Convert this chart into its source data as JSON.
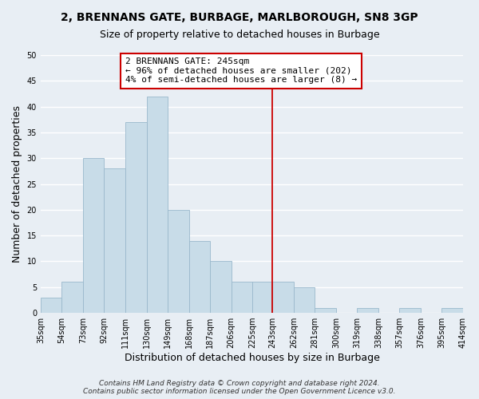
{
  "title": "2, BRENNANS GATE, BURBAGE, MARLBOROUGH, SN8 3GP",
  "subtitle": "Size of property relative to detached houses in Burbage",
  "xlabel": "Distribution of detached houses by size in Burbage",
  "ylabel": "Number of detached properties",
  "bar_color": "#c8dce8",
  "bar_edge_color": "#9ab8cc",
  "bin_edges": [
    35,
    54,
    73,
    92,
    111,
    130,
    149,
    168,
    187,
    206,
    225,
    243,
    262,
    281,
    300,
    319,
    338,
    357,
    376,
    395,
    414
  ],
  "bar_heights": [
    3,
    6,
    30,
    28,
    37,
    42,
    20,
    14,
    10,
    6,
    6,
    6,
    5,
    1,
    0,
    1,
    0,
    1,
    0,
    1
  ],
  "tick_labels": [
    "35sqm",
    "54sqm",
    "73sqm",
    "92sqm",
    "111sqm",
    "130sqm",
    "149sqm",
    "168sqm",
    "187sqm",
    "206sqm",
    "225sqm",
    "243sqm",
    "262sqm",
    "281sqm",
    "300sqm",
    "319sqm",
    "338sqm",
    "357sqm",
    "376sqm",
    "395sqm",
    "414sqm"
  ],
  "ylim": [
    0,
    50
  ],
  "yticks": [
    0,
    5,
    10,
    15,
    20,
    25,
    30,
    35,
    40,
    45,
    50
  ],
  "vline_x": 243,
  "vline_color": "#cc0000",
  "annotation_title": "2 BRENNANS GATE: 245sqm",
  "annotation_line1": "← 96% of detached houses are smaller (202)",
  "annotation_line2": "4% of semi-detached houses are larger (8) →",
  "footer_line1": "Contains HM Land Registry data © Crown copyright and database right 2024.",
  "footer_line2": "Contains public sector information licensed under the Open Government Licence v3.0.",
  "background_color": "#e8eef4",
  "grid_color": "#ffffff",
  "title_fontsize": 10,
  "subtitle_fontsize": 9,
  "axis_label_fontsize": 9,
  "tick_fontsize": 7,
  "footer_fontsize": 6.5,
  "annotation_fontsize": 8
}
